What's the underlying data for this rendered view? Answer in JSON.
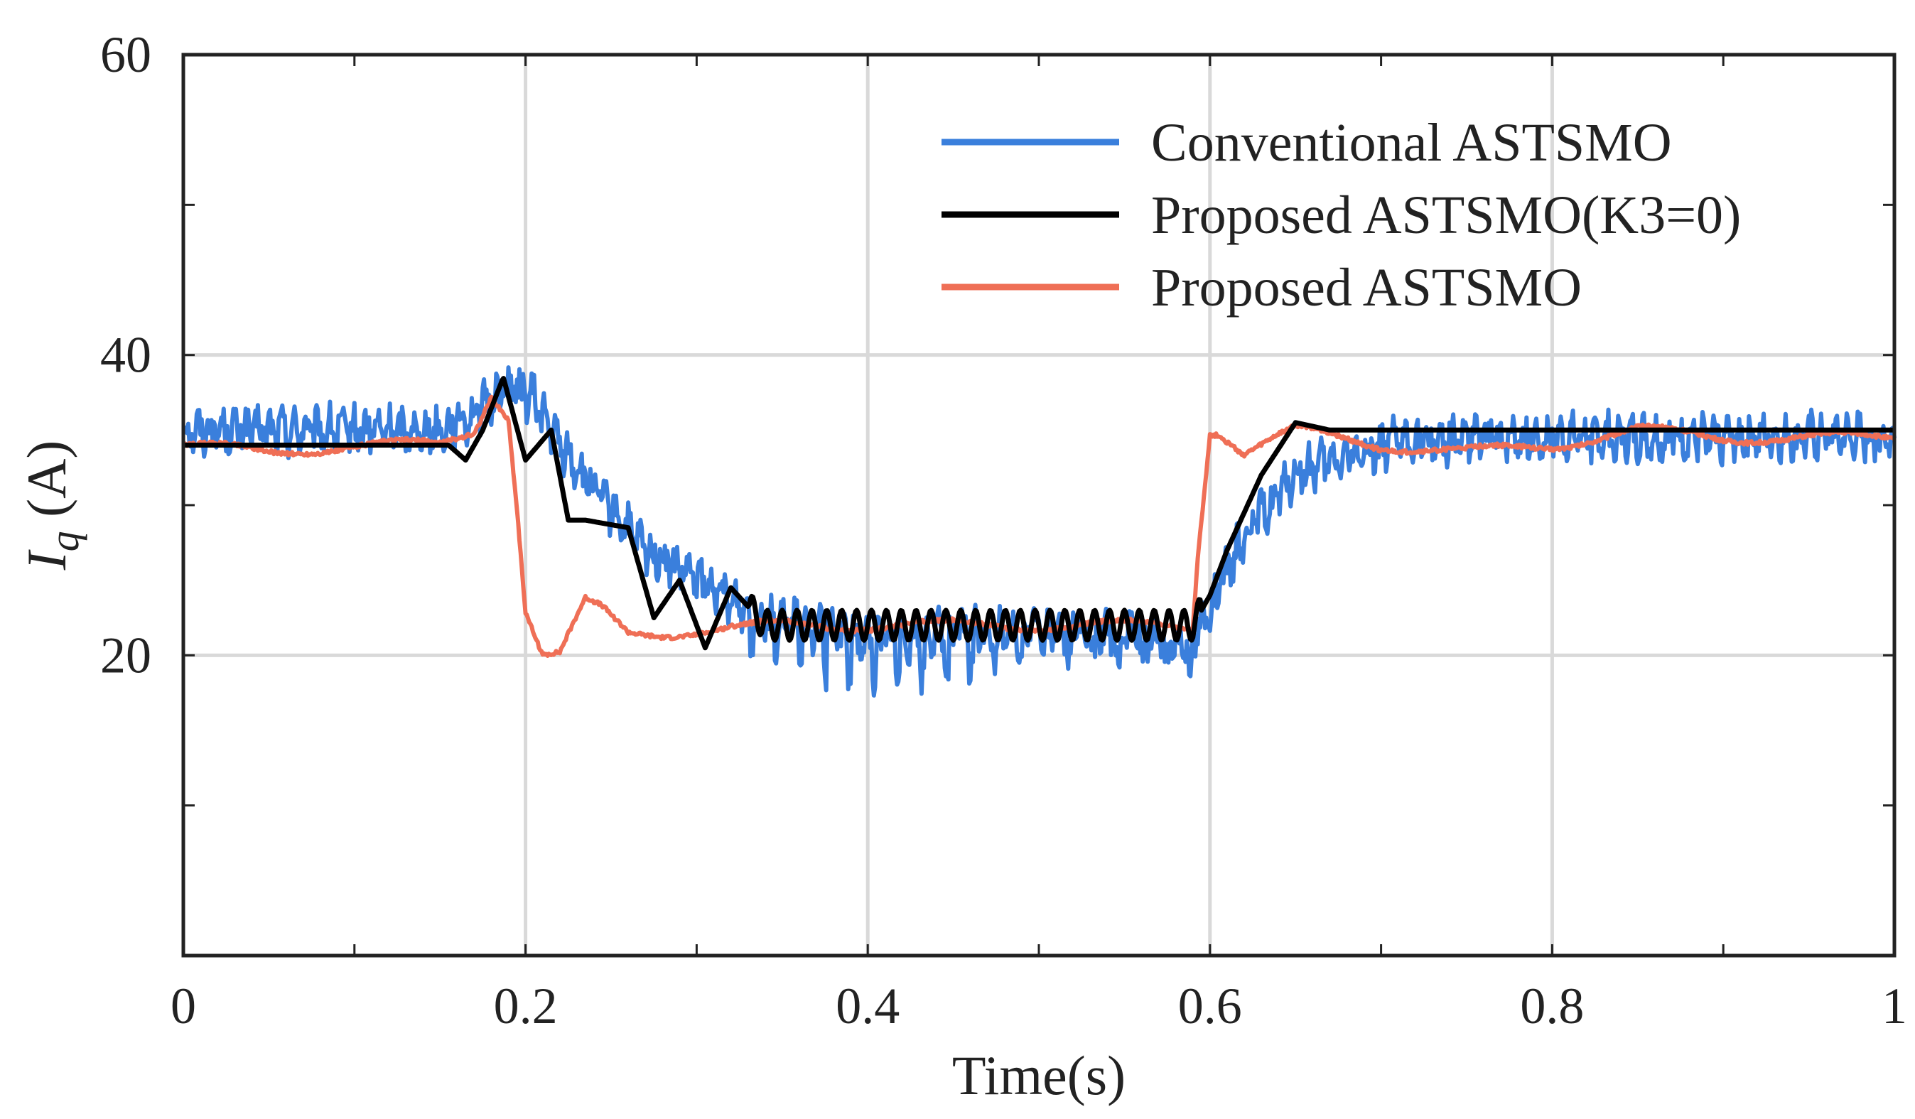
{
  "colors": {
    "conventional": "#3a7fdc",
    "proposed_k3": "#000000",
    "proposed": "#ef6f56",
    "grid": "#d9d9d9",
    "axis": "#222222"
  },
  "chart_data": {
    "type": "line",
    "xlabel": "Time(s)",
    "ylabel": {
      "symbol": "I",
      "subscript": "q",
      "unit": " (A)"
    },
    "xlim": [
      0,
      1
    ],
    "ylim": [
      0,
      60
    ],
    "xticks": [
      {
        "value": 0,
        "label": "0"
      },
      {
        "value": 0.2,
        "label": "0.2"
      },
      {
        "value": 0.4,
        "label": "0.4"
      },
      {
        "value": 0.6,
        "label": "0.6"
      },
      {
        "value": 0.8,
        "label": "0.8"
      },
      {
        "value": 1,
        "label": "1"
      }
    ],
    "yticks": [
      {
        "value": 20,
        "label": "20"
      },
      {
        "value": 40,
        "label": "40"
      },
      {
        "value": 60,
        "label": "60"
      }
    ],
    "grid": true,
    "legend_position": "top-right",
    "series": [
      {
        "name": "Conventional ASTSMO",
        "color": "#3a7fdc",
        "noise": 1.6,
        "x": [
          0,
          0.05,
          0.1,
          0.15,
          0.17,
          0.19,
          0.205,
          0.22,
          0.24,
          0.27,
          0.3,
          0.33,
          0.36,
          0.4,
          0.45,
          0.5,
          0.55,
          0.59,
          0.6,
          0.62,
          0.65,
          0.7,
          0.75,
          0.8,
          0.85,
          0.9,
          0.95,
          1.0
        ],
        "values": [
          35,
          35,
          35,
          35,
          36,
          38,
          37,
          34,
          31,
          27,
          25,
          23,
          22,
          21,
          21.5,
          22,
          21.5,
          21,
          23,
          28,
          32,
          34,
          34.5,
          34.5,
          34.5,
          34.5,
          34.5,
          34.5
        ]
      },
      {
        "name": "Proposed ASTSMO(K3=0)",
        "color": "#000000",
        "x": [
          0,
          0.1,
          0.155,
          0.165,
          0.175,
          0.187,
          0.2,
          0.215,
          0.225,
          0.235,
          0.26,
          0.275,
          0.29,
          0.305,
          0.32,
          0.34,
          0.59,
          0.6,
          0.61,
          0.63,
          0.65,
          0.67,
          0.7,
          0.8,
          0.9,
          1.0
        ],
        "values": [
          34,
          34,
          34,
          33,
          35,
          38.5,
          33,
          35,
          29,
          29,
          28.5,
          22.5,
          25,
          20.5,
          24.5,
          22,
          22,
          24,
          27,
          32,
          35.5,
          35,
          35,
          35,
          35,
          35
        ]
      },
      {
        "name": "Proposed ASTSMO",
        "color": "#ef6f56",
        "x": [
          0,
          0.05,
          0.1,
          0.15,
          0.17,
          0.18,
          0.19,
          0.195,
          0.2,
          0.21,
          0.22,
          0.235,
          0.245,
          0.26,
          0.28,
          0.35,
          0.45,
          0.55,
          0.59,
          0.593,
          0.6,
          0.605,
          0.62,
          0.65,
          0.7,
          0.75,
          0.8,
          0.85,
          0.9,
          0.95,
          1.0
        ],
        "values": [
          34,
          33.5,
          34,
          34,
          35,
          37.5,
          36,
          30,
          23,
          20,
          20,
          23.5,
          23,
          21.5,
          21.5,
          22,
          22,
          22,
          22,
          27,
          35,
          35,
          33.5,
          35,
          34,
          33.5,
          34,
          35,
          34.5,
          34.5,
          34.5
        ]
      }
    ]
  }
}
